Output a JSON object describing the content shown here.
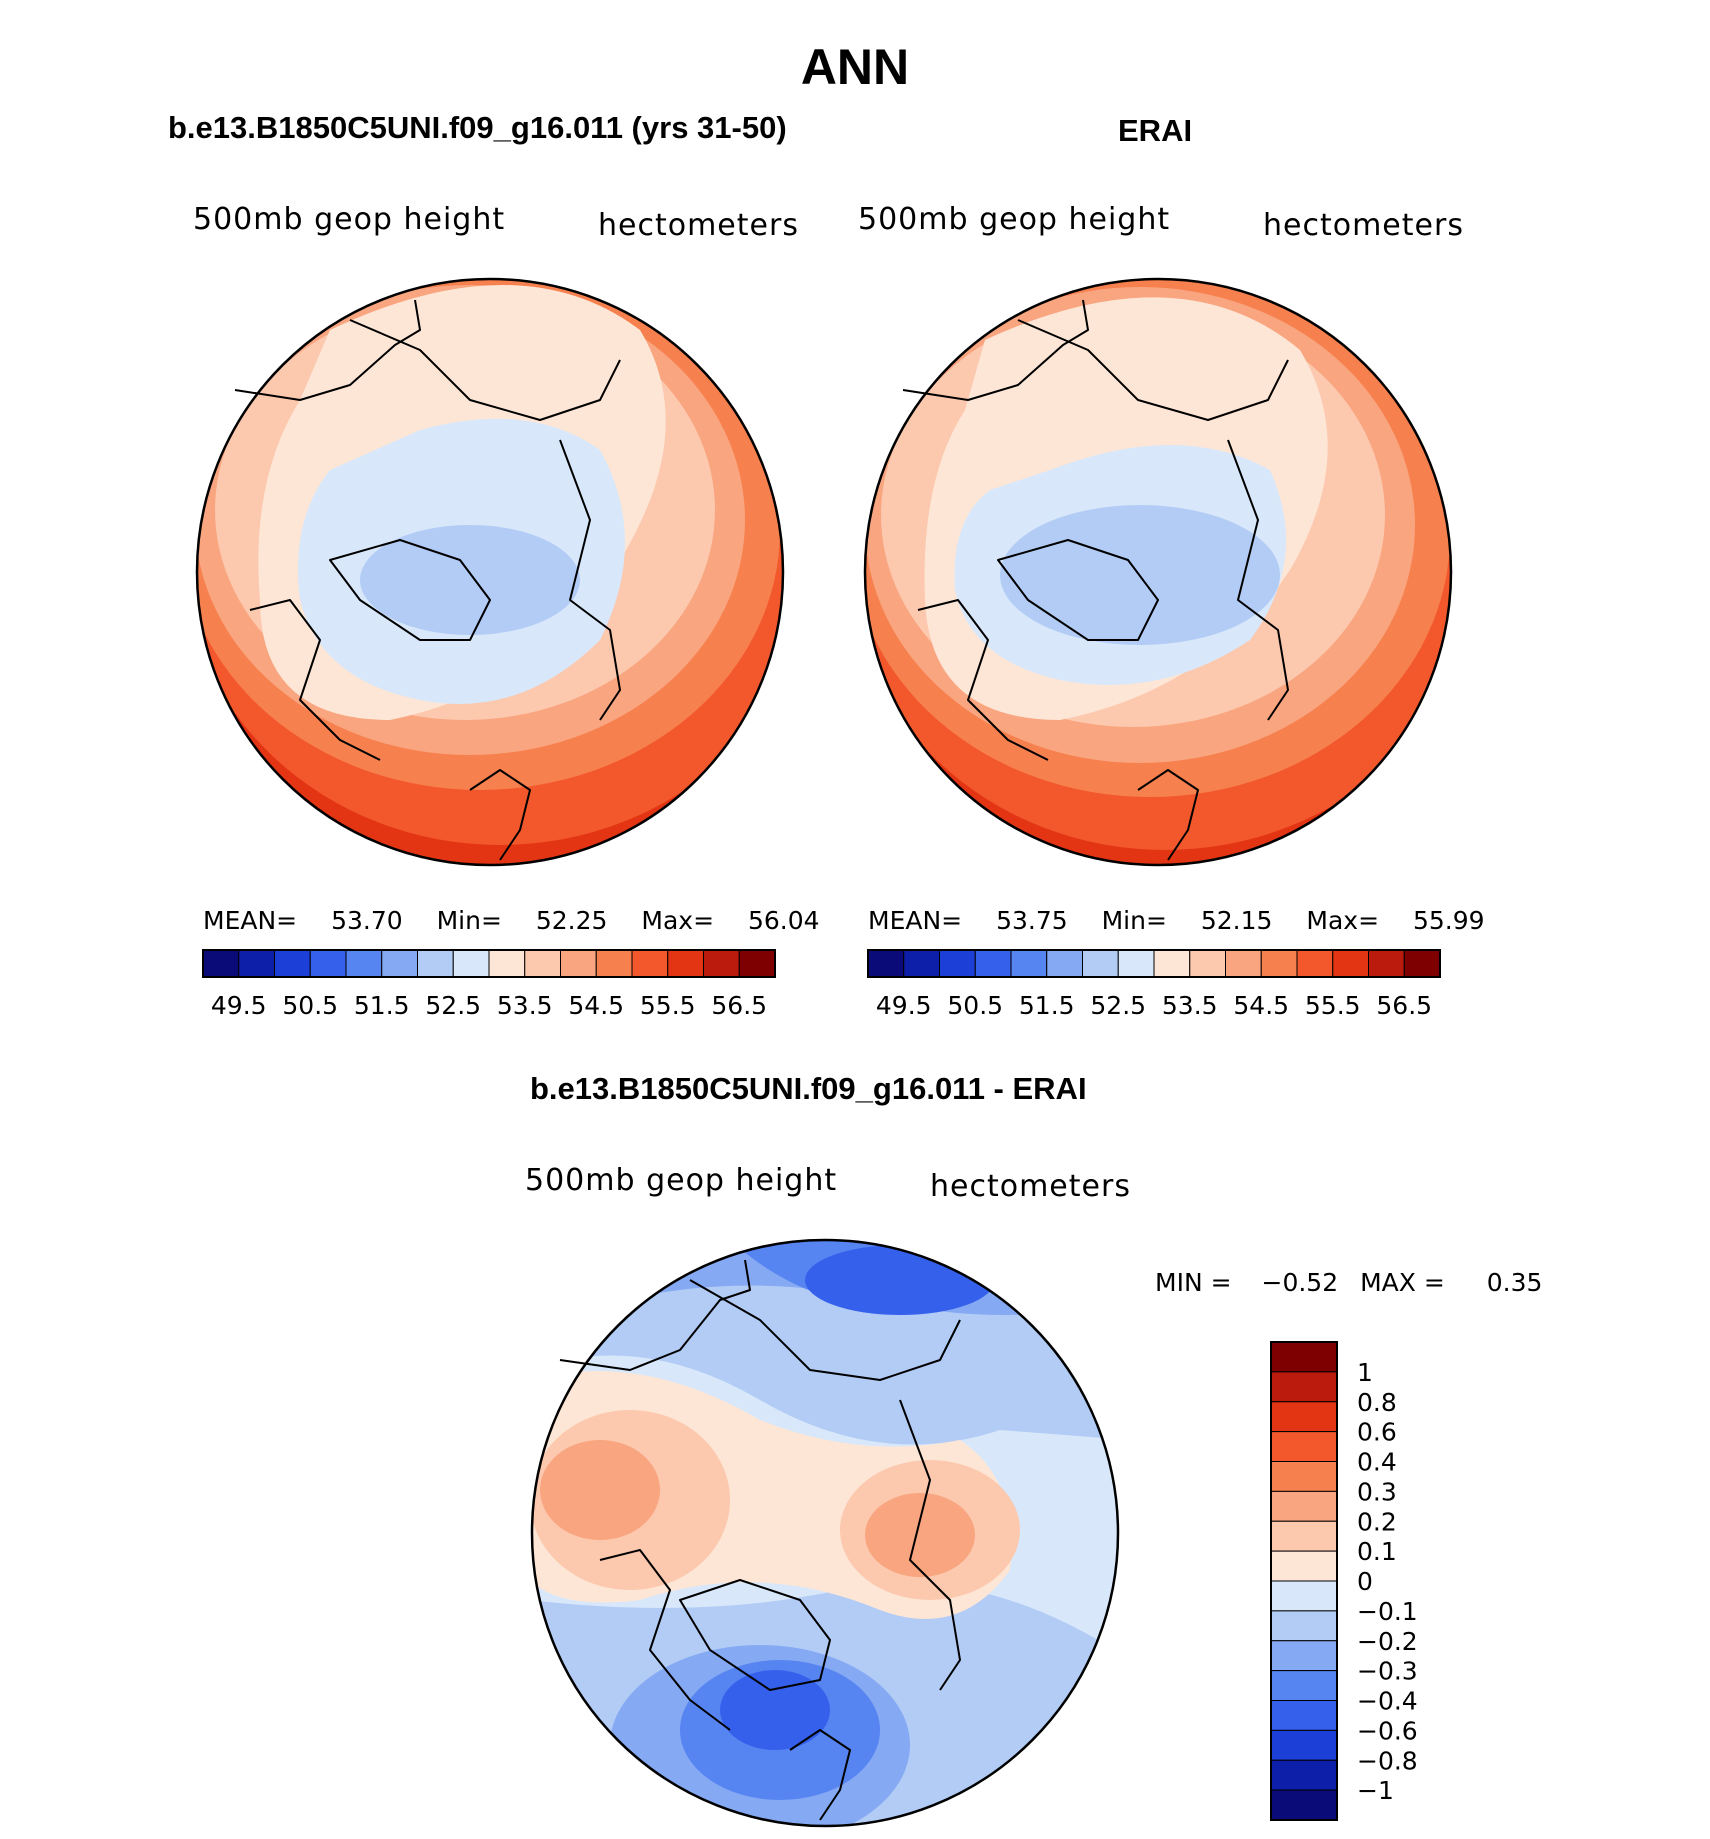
{
  "title": "ANN",
  "panels": {
    "model": {
      "case_title": "b.e13.B1850C5UNI.f09_g16.011 (yrs 31-50)",
      "variable": "500mb geop height",
      "units": "hectometers",
      "stats": {
        "mean_label": "MEAN=",
        "mean": "53.70",
        "min_label": "Min=",
        "min": "52.25",
        "max_label": "Max=",
        "max": "56.04"
      }
    },
    "obs": {
      "case_title": "ERAI",
      "variable": "500mb geop height",
      "units": "hectometers",
      "stats": {
        "mean_label": "MEAN=",
        "mean": "53.75",
        "min_label": "Min=",
        "min": "52.15",
        "max_label": "Max=",
        "max": "55.99"
      }
    },
    "diff": {
      "case_title": "b.e13.B1850C5UNI.f09_g16.011 - ERAI",
      "variable": "500mb geop height",
      "units": "hectometers",
      "stats": {
        "min_label": "MIN =",
        "min": "−0.52",
        "max_label": "MAX =",
        "max": "0.35"
      }
    }
  },
  "colorbars": {
    "abs": {
      "colors": [
        "#0a0a78",
        "#0d1fa8",
        "#1c3fd8",
        "#3560ec",
        "#5685f2",
        "#85a9f2",
        "#b2ccf6",
        "#d8e8fa",
        "#fde6d6",
        "#fcc8ae",
        "#f9a57f",
        "#f7804f",
        "#f2582c",
        "#e33413",
        "#ba1b0c",
        "#7e0000"
      ],
      "labels": [
        "49.5",
        "50.5",
        "51.5",
        "52.5",
        "53.5",
        "54.5",
        "55.5",
        "56.5"
      ]
    },
    "diff": {
      "colors_top_to_bottom": [
        "#7e0000",
        "#ba1b0c",
        "#e33413",
        "#f2582c",
        "#f7804f",
        "#f9a57f",
        "#fcc8ae",
        "#fde6d6",
        "#d8e8fa",
        "#b2ccf6",
        "#85a9f2",
        "#5685f2",
        "#3560ec",
        "#1c3fd8",
        "#0d1fa8",
        "#0a0a78"
      ],
      "labels": [
        "1",
        "0.8",
        "0.6",
        "0.4",
        "0.3",
        "0.2",
        "0.1",
        "0",
        "−0.1",
        "−0.2",
        "−0.3",
        "−0.4",
        "−0.6",
        "−0.8",
        "−1"
      ]
    }
  },
  "map_fields": {
    "model": {
      "low_center": "low over Canadian Arctic / Baffin",
      "rings": [
        "#fde6d6",
        "#fcc8ae",
        "#f9a57f",
        "#f7804f",
        "#f2582c",
        "#e33413"
      ]
    },
    "obs": {
      "low_center": "low over Canadian Arctic / Baffin",
      "rings": [
        "#fde6d6",
        "#fcc8ae",
        "#f9a57f",
        "#f7804f",
        "#f2582c",
        "#e33413"
      ]
    }
  }
}
